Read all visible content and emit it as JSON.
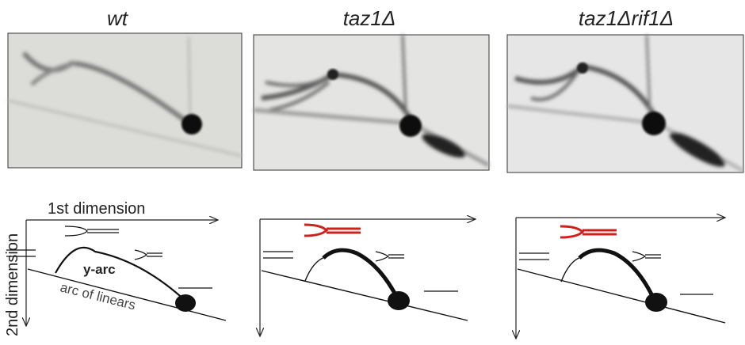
{
  "panels": [
    {
      "title": "wt"
    },
    {
      "title": "taz1Δ"
    },
    {
      "title": "taz1Δrif1Δ"
    }
  ],
  "schematic": {
    "x_axis_label": "1st dimension",
    "y_axis_label": "2nd dimension",
    "y_arc_label": "y-arc",
    "linear_arc_label": "arc of linears"
  }
}
